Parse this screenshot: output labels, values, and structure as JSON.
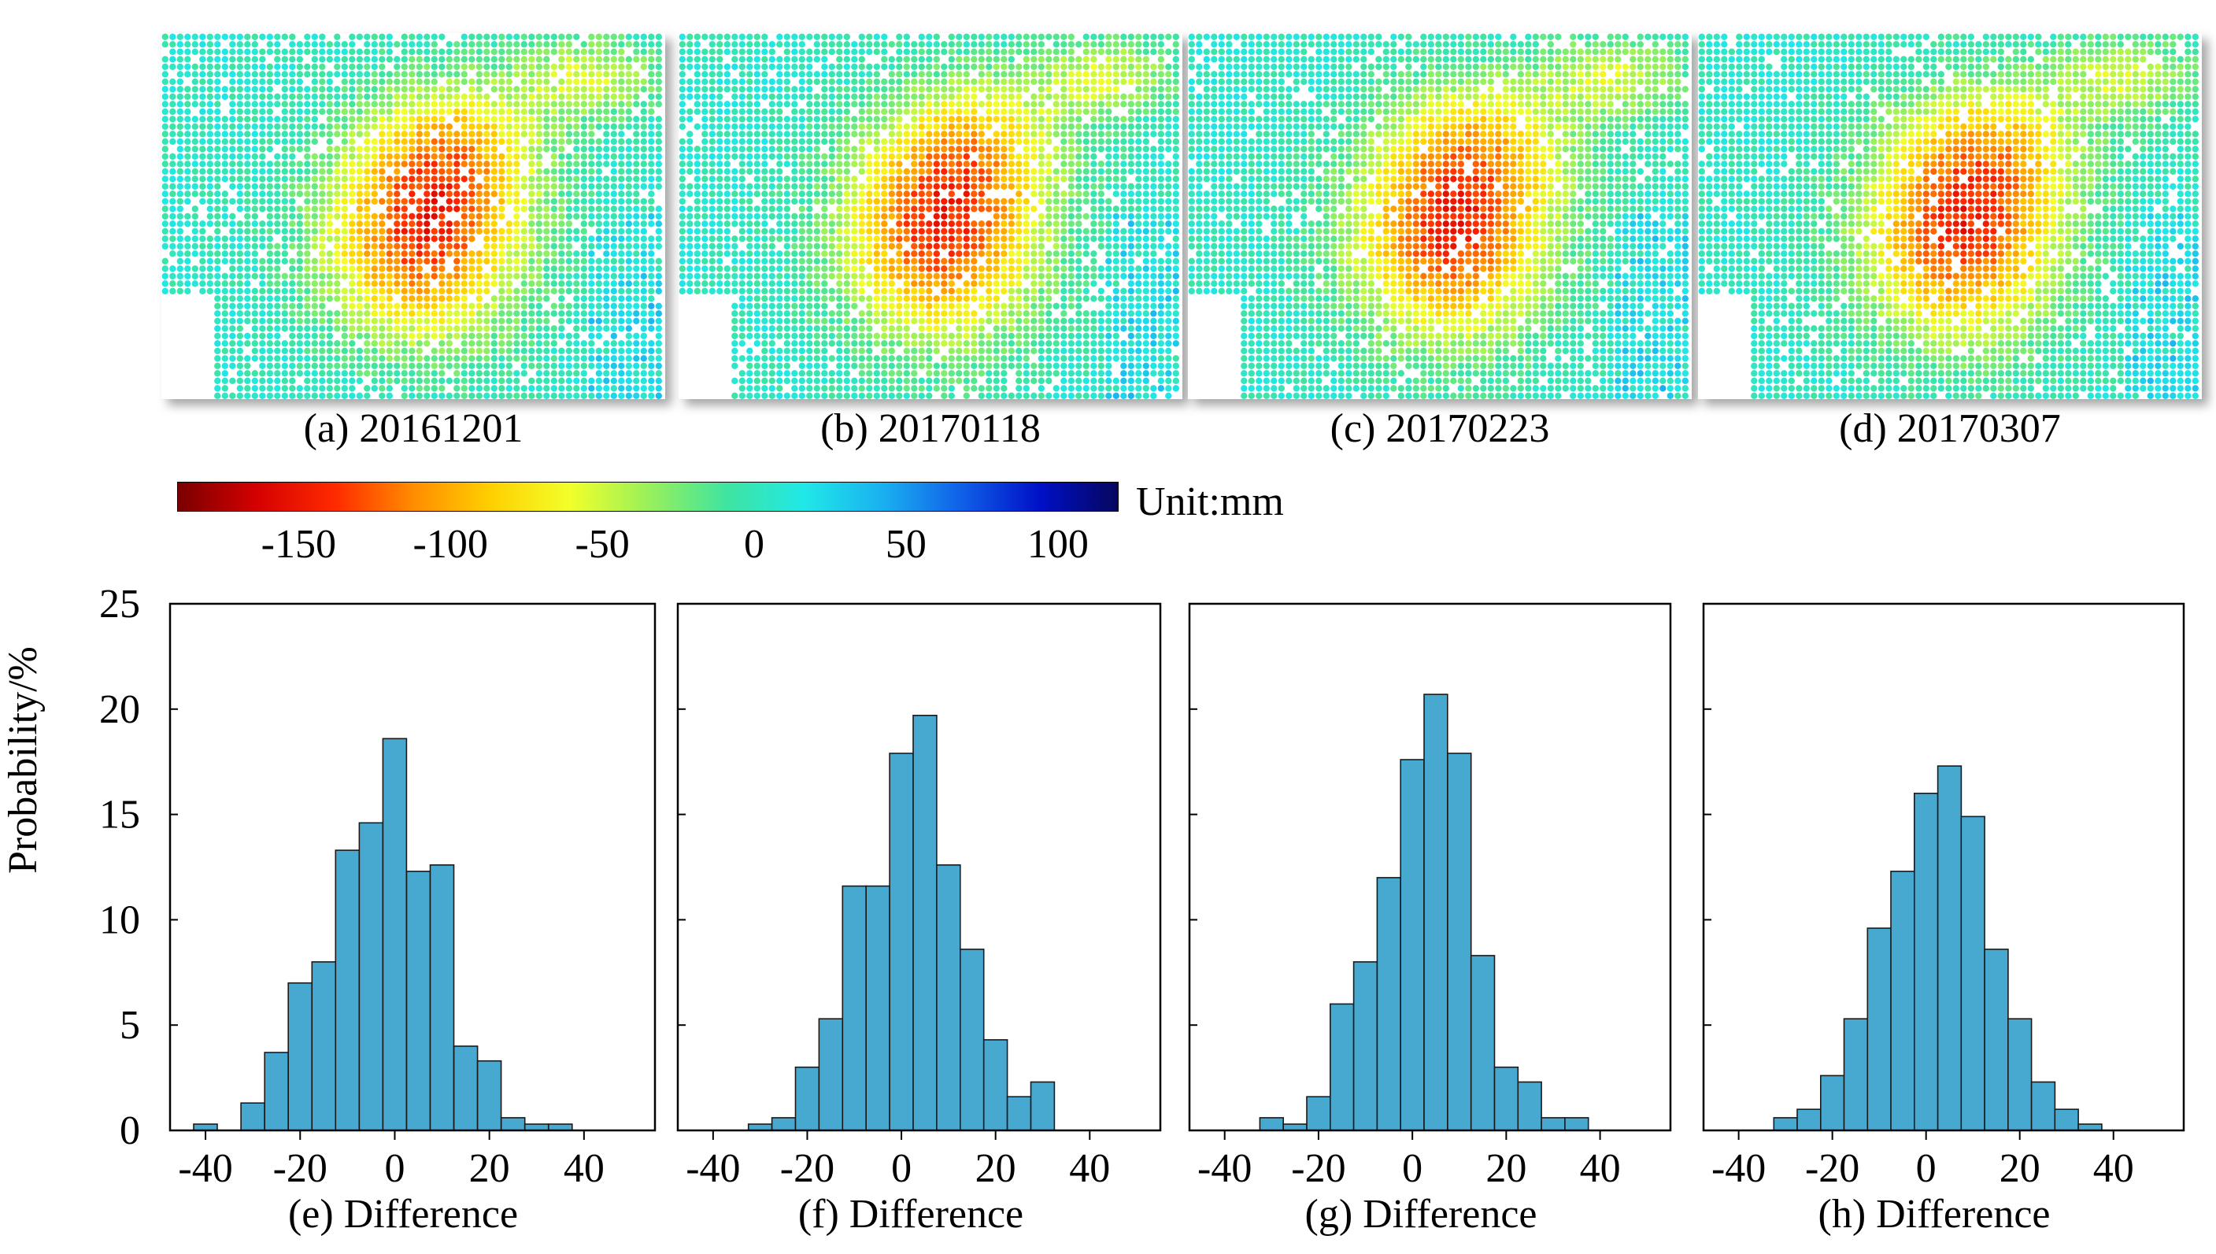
{
  "colors": {
    "bar_fill": "#47a8d0",
    "bar_stroke": "#1a1a1a",
    "axis": "#000000"
  },
  "maps": [
    {
      "caption": "(a) 20161201",
      "icon": "deformation-map"
    },
    {
      "caption": "(b) 20170118",
      "icon": "deformation-map"
    },
    {
      "caption": "(c) 20170223",
      "icon": "deformation-map"
    },
    {
      "caption": "(d) 20170307",
      "icon": "deformation-map"
    }
  ],
  "colorbar": {
    "unit_label": "Unit:mm",
    "min": -190,
    "max": 120,
    "ticks": [
      "-150",
      "-100",
      "-50",
      "0",
      "50",
      "100"
    ],
    "tick_values": [
      -150,
      -100,
      -50,
      0,
      50,
      100
    ],
    "stops": [
      "#7a0000",
      "#d40000",
      "#ff2a00",
      "#ff8c00",
      "#ffd000",
      "#f2ff2a",
      "#9af05a",
      "#3fe4a0",
      "#20e8e8",
      "#1ab0f0",
      "#1060e8",
      "#0010c8",
      "#06065e"
    ]
  },
  "chart_data": [
    {
      "type": "bar",
      "title": "",
      "xlabel": "(e) Difference",
      "ylabel": "Probability/%",
      "bin_width": 5,
      "bin_centers": [
        -40,
        -35,
        -30,
        -25,
        -20,
        -15,
        -10,
        -5,
        0,
        5,
        10,
        15,
        20,
        25,
        30,
        35,
        40,
        45
      ],
      "values": [
        0.3,
        0,
        1.3,
        3.7,
        7.0,
        8.0,
        13.3,
        14.6,
        18.6,
        12.3,
        12.6,
        4.0,
        3.3,
        0.6,
        0.3,
        0.3,
        0,
        0
      ],
      "xlim": [
        -47.5,
        55
      ],
      "ylim": [
        0,
        25
      ],
      "xticks": [
        -40,
        -20,
        0,
        20,
        40
      ],
      "yticks": [
        0,
        5,
        10,
        15,
        20,
        25
      ]
    },
    {
      "type": "bar",
      "title": "",
      "xlabel": "(f) Difference",
      "ylabel": "Probability/%",
      "bin_width": 5,
      "bin_centers": [
        -40,
        -35,
        -30,
        -25,
        -20,
        -15,
        -10,
        -5,
        0,
        5,
        10,
        15,
        20,
        25,
        30,
        35,
        40,
        45
      ],
      "values": [
        0,
        0,
        0.3,
        0.6,
        3.0,
        5.3,
        11.6,
        11.6,
        17.9,
        19.7,
        12.6,
        8.6,
        4.3,
        1.6,
        2.3,
        0,
        0,
        0
      ],
      "xlim": [
        -47.5,
        55
      ],
      "ylim": [
        0,
        25
      ],
      "xticks": [
        -40,
        -20,
        0,
        20,
        40
      ],
      "yticks": [
        0,
        5,
        10,
        15,
        20,
        25
      ]
    },
    {
      "type": "bar",
      "title": "",
      "xlabel": "(g) Difference",
      "ylabel": "Probability/%",
      "bin_width": 5,
      "bin_centers": [
        -40,
        -35,
        -30,
        -25,
        -20,
        -15,
        -10,
        -5,
        0,
        5,
        10,
        15,
        20,
        25,
        30,
        35,
        40,
        45
      ],
      "values": [
        0,
        0,
        0.6,
        0.3,
        1.6,
        6.0,
        8.0,
        12.0,
        17.6,
        20.7,
        17.9,
        8.3,
        3.0,
        2.3,
        0.6,
        0.6,
        0,
        0
      ],
      "xlim": [
        -47.5,
        55
      ],
      "ylim": [
        0,
        25
      ],
      "xticks": [
        -40,
        -20,
        0,
        20,
        40
      ],
      "yticks": [
        0,
        5,
        10,
        15,
        20,
        25
      ]
    },
    {
      "type": "bar",
      "title": "",
      "xlabel": "(h) Difference",
      "ylabel": "Probability/%",
      "bin_width": 5,
      "bin_centers": [
        -40,
        -35,
        -30,
        -25,
        -20,
        -15,
        -10,
        -5,
        0,
        5,
        10,
        15,
        20,
        25,
        30,
        35,
        40,
        45
      ],
      "values": [
        0,
        0,
        0.6,
        1.0,
        2.6,
        5.3,
        9.6,
        12.3,
        16.0,
        17.3,
        14.9,
        8.6,
        5.3,
        2.3,
        1.0,
        0.3,
        0,
        0
      ],
      "xlim": [
        -47.5,
        55
      ],
      "ylim": [
        0,
        25
      ],
      "xticks": [
        -40,
        -20,
        0,
        20,
        40
      ],
      "yticks": [
        0,
        5,
        10,
        15,
        20,
        25
      ]
    }
  ]
}
